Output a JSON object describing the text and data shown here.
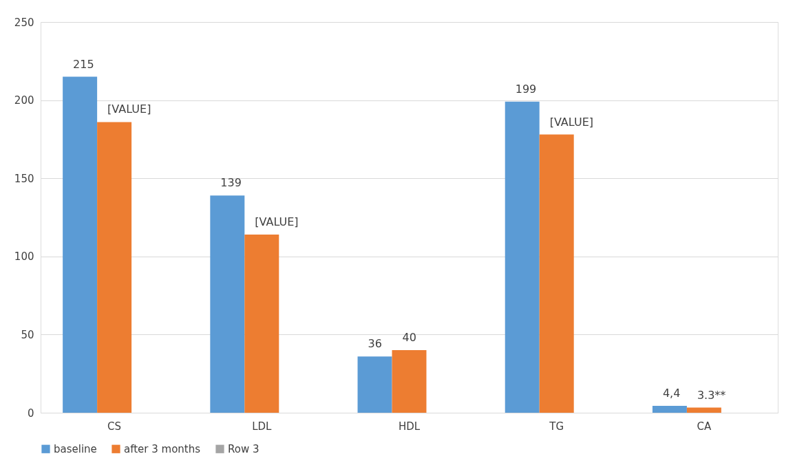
{
  "chart_data": {
    "type": "bar",
    "categories": [
      "CS",
      "LDL",
      "HDL",
      "TG",
      "CA"
    ],
    "series": [
      {
        "name": "baseline",
        "color": "#5b9bd5",
        "values": [
          215,
          139,
          36,
          199,
          4.4
        ],
        "value_labels": [
          "215",
          "139",
          "36",
          "199",
          "4,4"
        ]
      },
      {
        "name": "after 3 months",
        "color": "#ed7d31",
        "values": [
          186,
          114,
          40,
          178,
          3.3
        ],
        "value_labels": [
          "[VALUE]",
          "[VALUE]",
          "40",
          "[VALUE]",
          "3.3**"
        ]
      },
      {
        "name": "Row 3",
        "color": "#a5a5a5",
        "values": [
          null,
          null,
          null,
          null,
          null
        ]
      }
    ],
    "ylim": [
      0,
      250
    ],
    "yticks": [
      0,
      50,
      100,
      150,
      200,
      250
    ],
    "grid": "y",
    "legend": "bottom"
  }
}
